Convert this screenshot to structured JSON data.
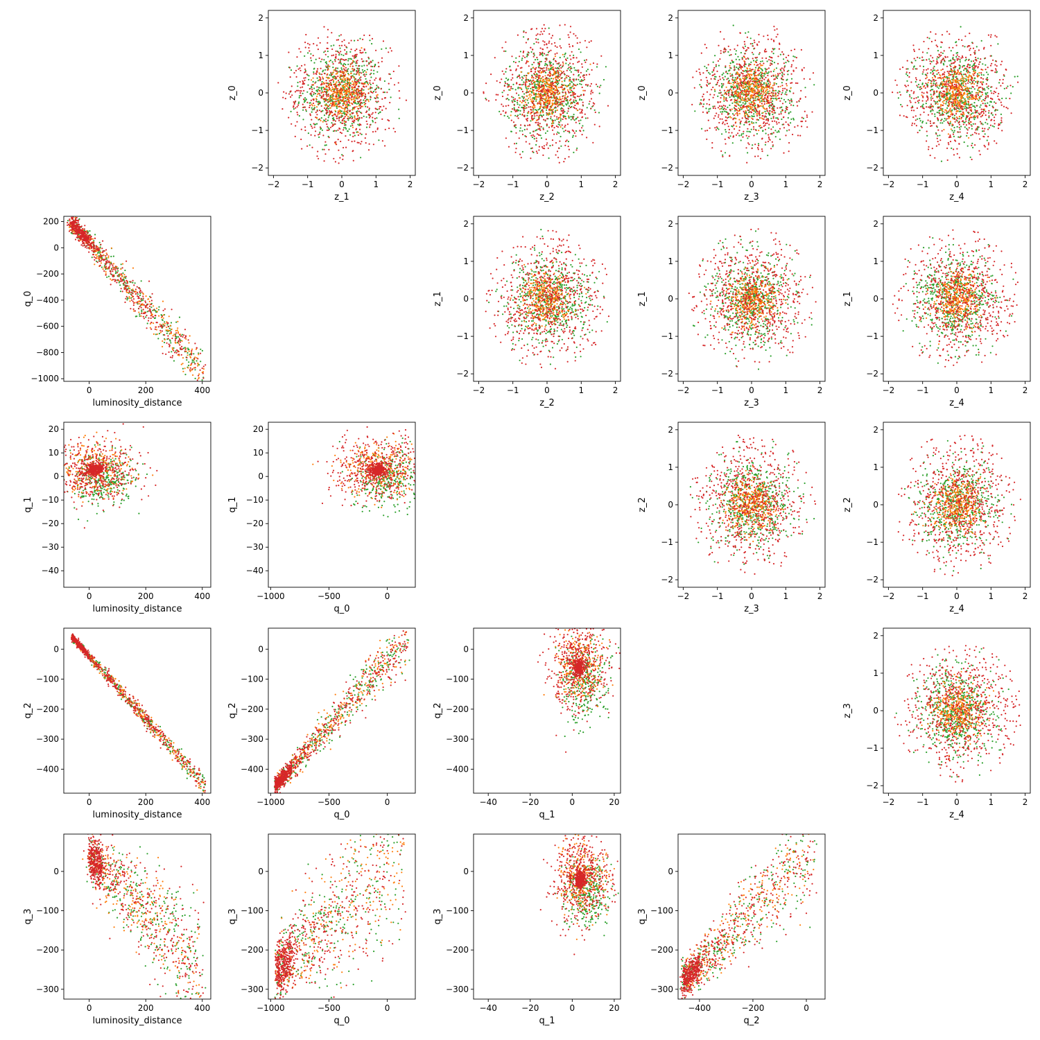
{
  "figure": {
    "description_colors": [
      "#2ca02c",
      "#ff7f0e",
      "#d62728"
    ],
    "point_marker": "dot"
  },
  "chart_data": [
    {
      "type": "scatter",
      "xlabel": "z_1",
      "ylabel": "z_0",
      "xlim": [
        -2.15,
        2.15
      ],
      "ylim": [
        -2.2,
        2.2
      ],
      "xticks": [
        -2,
        -1,
        0,
        1,
        2
      ],
      "yticks": [
        -2,
        -1,
        0,
        1,
        2
      ],
      "shape": "blob",
      "gen": {
        "r": 1.9,
        "inner": [
          0.6,
          0.5,
          0.45
        ]
      }
    },
    {
      "type": "scatter",
      "xlabel": "z_2",
      "ylabel": "z_0",
      "xlim": [
        -2.15,
        2.15
      ],
      "ylim": [
        -2.2,
        2.2
      ],
      "xticks": [
        -2,
        -1,
        0,
        1,
        2
      ],
      "yticks": [
        -2,
        -1,
        0,
        1,
        2
      ],
      "shape": "blob",
      "gen": {
        "r": 1.9,
        "inner": [
          0.6,
          0.5,
          0.45
        ]
      }
    },
    {
      "type": "scatter",
      "xlabel": "z_3",
      "ylabel": "z_0",
      "xlim": [
        -2.15,
        2.15
      ],
      "ylim": [
        -2.2,
        2.2
      ],
      "xticks": [
        -2,
        -1,
        0,
        1,
        2
      ],
      "yticks": [
        -2,
        -1,
        0,
        1,
        2
      ],
      "shape": "blob",
      "gen": {
        "r": 1.9,
        "inner": [
          0.6,
          0.5,
          0.45
        ]
      }
    },
    {
      "type": "scatter",
      "xlabel": "z_4",
      "ylabel": "z_0",
      "xlim": [
        -2.15,
        2.15
      ],
      "ylim": [
        -2.2,
        2.2
      ],
      "xticks": [
        -2,
        -1,
        0,
        1,
        2
      ],
      "yticks": [
        -2,
        -1,
        0,
        1,
        2
      ],
      "shape": "blob",
      "gen": {
        "r": 1.9,
        "inner": [
          0.6,
          0.5,
          0.45
        ]
      }
    },
    {
      "type": "scatter",
      "xlabel": "luminosity_distance",
      "ylabel": "q_0",
      "xlim": [
        -90,
        430
      ],
      "ylim": [
        -1020,
        240
      ],
      "xticks": [
        0,
        200,
        400
      ],
      "yticks": [
        200,
        0,
        -200,
        -400,
        -600,
        -800,
        -1000
      ],
      "yticklabels": [
        "200",
        "0",
        "−200",
        "−400",
        "−600",
        "−800",
        "−1000"
      ],
      "shape": "line",
      "gen": {
        "x0": -60,
        "x1": 400,
        "y0": 190,
        "y1": -950,
        "spread": 60
      }
    },
    {
      "type": "scatter",
      "xlabel": "z_2",
      "ylabel": "z_1",
      "xlim": [
        -2.15,
        2.15
      ],
      "ylim": [
        -2.2,
        2.2
      ],
      "xticks": [
        -2,
        -1,
        0,
        1,
        2
      ],
      "yticks": [
        -2,
        -1,
        0,
        1,
        2
      ],
      "shape": "blob",
      "gen": {
        "r": 1.9,
        "inner": [
          0.6,
          0.5,
          0.45
        ]
      }
    },
    {
      "type": "scatter",
      "xlabel": "z_3",
      "ylabel": "z_1",
      "xlim": [
        -2.15,
        2.15
      ],
      "ylim": [
        -2.2,
        2.2
      ],
      "xticks": [
        -2,
        -1,
        0,
        1,
        2
      ],
      "yticks": [
        -2,
        -1,
        0,
        1,
        2
      ],
      "shape": "blob",
      "gen": {
        "r": 1.9,
        "inner": [
          0.6,
          0.5,
          0.45
        ]
      }
    },
    {
      "type": "scatter",
      "xlabel": "z_4",
      "ylabel": "z_1",
      "xlim": [
        -2.15,
        2.15
      ],
      "ylim": [
        -2.2,
        2.2
      ],
      "xticks": [
        -2,
        -1,
        0,
        1,
        2
      ],
      "yticks": [
        -2,
        -1,
        0,
        1,
        2
      ],
      "shape": "blob",
      "gen": {
        "r": 1.9,
        "inner": [
          0.6,
          0.5,
          0.45
        ]
      }
    },
    {
      "type": "scatter",
      "xlabel": "luminosity_distance",
      "ylabel": "q_1",
      "xlim": [
        -90,
        430
      ],
      "ylim": [
        -47,
        23
      ],
      "xticks": [
        0,
        200,
        400
      ],
      "yticks": [
        20,
        10,
        0,
        -10,
        -20,
        -30,
        -40
      ],
      "yticklabels": [
        "20",
        "10",
        "0",
        "−10",
        "−20",
        "−30",
        "−40"
      ],
      "shape": "cluster",
      "gen": {
        "cx": 20,
        "cy": 3,
        "sx": 110,
        "sy": 10
      }
    },
    {
      "type": "scatter",
      "xlabel": "q_0",
      "ylabel": "q_1",
      "xlim": [
        -1020,
        240
      ],
      "ylim": [
        -47,
        23
      ],
      "xticks": [
        -1000,
        -500,
        0
      ],
      "xticklabels": [
        "−1000",
        "−500",
        "0"
      ],
      "yticks": [
        20,
        10,
        0,
        -10,
        -20,
        -30,
        -40
      ],
      "yticklabels": [
        "20",
        "10",
        "0",
        "−10",
        "−20",
        "−30",
        "−40"
      ],
      "shape": "cluster",
      "gen": {
        "cx": -80,
        "cy": 3,
        "sx": 280,
        "sy": 10
      }
    },
    {
      "type": "scatter",
      "xlabel": "z_3",
      "ylabel": "z_2",
      "xlim": [
        -2.15,
        2.15
      ],
      "ylim": [
        -2.2,
        2.2
      ],
      "xticks": [
        -2,
        -1,
        0,
        1,
        2
      ],
      "yticks": [
        -2,
        -1,
        0,
        1,
        2
      ],
      "shape": "blob",
      "gen": {
        "r": 1.9,
        "inner": [
          0.6,
          0.5,
          0.45
        ]
      }
    },
    {
      "type": "scatter",
      "xlabel": "z_4",
      "ylabel": "z_2",
      "xlim": [
        -2.15,
        2.15
      ],
      "ylim": [
        -2.2,
        2.2
      ],
      "xticks": [
        -2,
        -1,
        0,
        1,
        2
      ],
      "yticks": [
        -2,
        -1,
        0,
        1,
        2
      ],
      "shape": "blob",
      "gen": {
        "r": 1.9,
        "inner": [
          0.6,
          0.5,
          0.45
        ]
      }
    },
    {
      "type": "scatter",
      "xlabel": "luminosity_distance",
      "ylabel": "q_2",
      "xlim": [
        -90,
        430
      ],
      "ylim": [
        -480,
        70
      ],
      "xticks": [
        0,
        200,
        400
      ],
      "yticks": [
        0,
        -100,
        -200,
        -300,
        -400
      ],
      "yticklabels": [
        "0",
        "−100",
        "−200",
        "−300",
        "−400"
      ],
      "shape": "line",
      "gen": {
        "x0": -60,
        "x1": 410,
        "y0": 40,
        "y1": -455,
        "spread": 12
      }
    },
    {
      "type": "scatter",
      "xlabel": "q_0",
      "ylabel": "q_2",
      "xlim": [
        -1020,
        240
      ],
      "ylim": [
        -480,
        70
      ],
      "xticks": [
        -1000,
        -500,
        0
      ],
      "xticklabels": [
        "−1000",
        "−500",
        "0"
      ],
      "yticks": [
        0,
        -100,
        -200,
        -300,
        -400
      ],
      "yticklabels": [
        "0",
        "−100",
        "−200",
        "−300",
        "−400"
      ],
      "shape": "line",
      "gen": {
        "x0": -960,
        "x1": 190,
        "y0": -455,
        "y1": 40,
        "spread": 30
      }
    },
    {
      "type": "scatter",
      "xlabel": "q_1",
      "ylabel": "q_2",
      "xlim": [
        -47,
        23
      ],
      "ylim": [
        -480,
        70
      ],
      "xticks": [
        -40,
        -20,
        0,
        20
      ],
      "xticklabels": [
        "−40",
        "−20",
        "0",
        "20"
      ],
      "yticks": [
        0,
        -100,
        -200,
        -300,
        -400
      ],
      "yticklabels": [
        "0",
        "−100",
        "−200",
        "−300",
        "−400"
      ],
      "shape": "cluster",
      "gen": {
        "cx": 3,
        "cy": -60,
        "sx": 10,
        "sy": 110
      }
    },
    {
      "type": "scatter",
      "xlabel": "z_4",
      "ylabel": "z_3",
      "xlim": [
        -2.15,
        2.15
      ],
      "ylim": [
        -2.2,
        2.2
      ],
      "xticks": [
        -2,
        -1,
        0,
        1,
        2
      ],
      "yticks": [
        -2,
        -1,
        0,
        1,
        2
      ],
      "shape": "blob",
      "gen": {
        "r": 1.9,
        "inner": [
          0.6,
          0.5,
          0.45
        ]
      }
    },
    {
      "type": "scatter",
      "xlabel": "luminosity_distance",
      "ylabel": "q_3",
      "xlim": [
        -90,
        430
      ],
      "ylim": [
        -325,
        95
      ],
      "xticks": [
        0,
        200,
        400
      ],
      "yticks": [
        0,
        -100,
        -200,
        -300
      ],
      "yticklabels": [
        "0",
        "−100",
        "−200",
        "−300"
      ],
      "shape": "line",
      "gen": {
        "x0": 0,
        "x1": 400,
        "y0": 40,
        "y1": -250,
        "spread": 60
      }
    },
    {
      "type": "scatter",
      "xlabel": "q_0",
      "ylabel": "q_3",
      "xlim": [
        -1020,
        240
      ],
      "ylim": [
        -325,
        95
      ],
      "xticks": [
        -1000,
        -500,
        0
      ],
      "xticklabels": [
        "−1000",
        "−500",
        "0"
      ],
      "yticks": [
        0,
        -100,
        -200,
        -300
      ],
      "yticklabels": [
        "0",
        "−100",
        "−200",
        "−300"
      ],
      "shape": "line",
      "gen": {
        "x0": -950,
        "x1": 150,
        "y0": -250,
        "y1": 60,
        "spread": 80
      }
    },
    {
      "type": "scatter",
      "xlabel": "q_1",
      "ylabel": "q_3",
      "xlim": [
        -47,
        23
      ],
      "ylim": [
        -325,
        95
      ],
      "xticks": [
        -40,
        -20,
        0,
        20
      ],
      "xticklabels": [
        "−40",
        "−20",
        "0",
        "20"
      ],
      "yticks": [
        0,
        -100,
        -200,
        -300
      ],
      "yticklabels": [
        "0",
        "−100",
        "−200",
        "−300"
      ],
      "shape": "cluster",
      "gen": {
        "cx": 4,
        "cy": -20,
        "sx": 10,
        "sy": 80
      }
    },
    {
      "type": "scatter",
      "xlabel": "q_2",
      "ylabel": "q_3",
      "xlim": [
        -480,
        70
      ],
      "ylim": [
        -325,
        95
      ],
      "xticks": [
        -400,
        -200,
        0
      ],
      "xticklabels": [
        "−400",
        "−200",
        "0"
      ],
      "yticks": [
        0,
        -100,
        -200,
        -300
      ],
      "yticklabels": [
        "0",
        "−100",
        "−200",
        "−300"
      ],
      "shape": "line",
      "gen": {
        "x0": -460,
        "x1": 30,
        "y0": -280,
        "y1": 60,
        "spread": 45
      }
    }
  ]
}
